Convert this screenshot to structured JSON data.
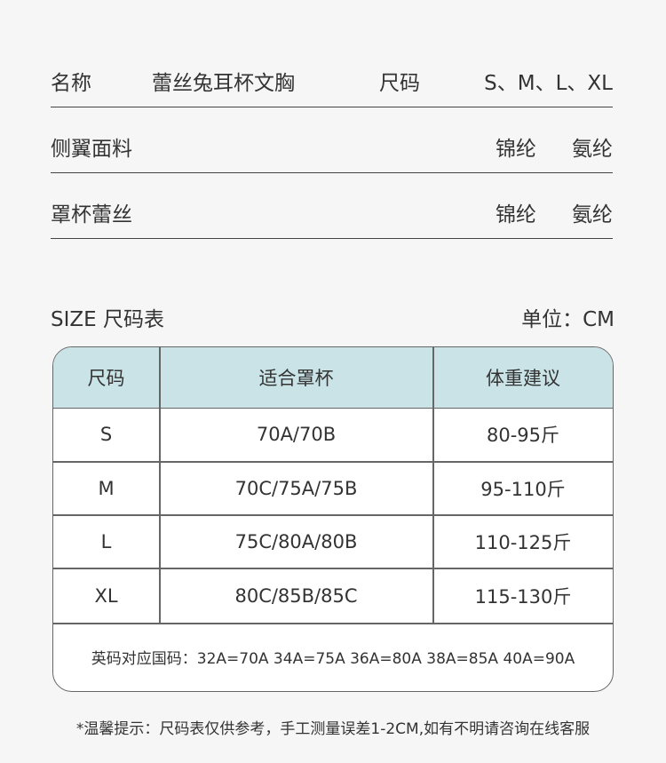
{
  "attributes": [
    {
      "label": "名称",
      "value": "蕾丝兔耳杯文胸",
      "label2": "尺码",
      "value2": "S、M、L、XL"
    },
    {
      "label": "侧翼面料",
      "value": "锦纶",
      "value2": "氨纶"
    },
    {
      "label": "罩杯蕾丝",
      "value": "锦纶",
      "value2": "氨纶"
    }
  ],
  "size_chart": {
    "title": "SIZE 尺码表",
    "unit": "单位：CM",
    "header_color": "#c9e3e7",
    "columns": [
      "尺码",
      "适合罩杯",
      "体重建议"
    ],
    "rows": [
      [
        "S",
        "70A/70B",
        "80-95斤"
      ],
      [
        "M",
        "70C/75A/75B",
        "95-110斤"
      ],
      [
        "L",
        "75C/80A/80B",
        "110-125斤"
      ],
      [
        "XL",
        "80C/85B/85C",
        "115-130斤"
      ]
    ],
    "note": "英码对应国码：32A=70A 34A=75A 36A=80A 38A=85A 40A=90A"
  },
  "tip": "*温馨提示：尺码表仅供参考，手工测量误差1-2CM,如有不明请咨询在线客服"
}
